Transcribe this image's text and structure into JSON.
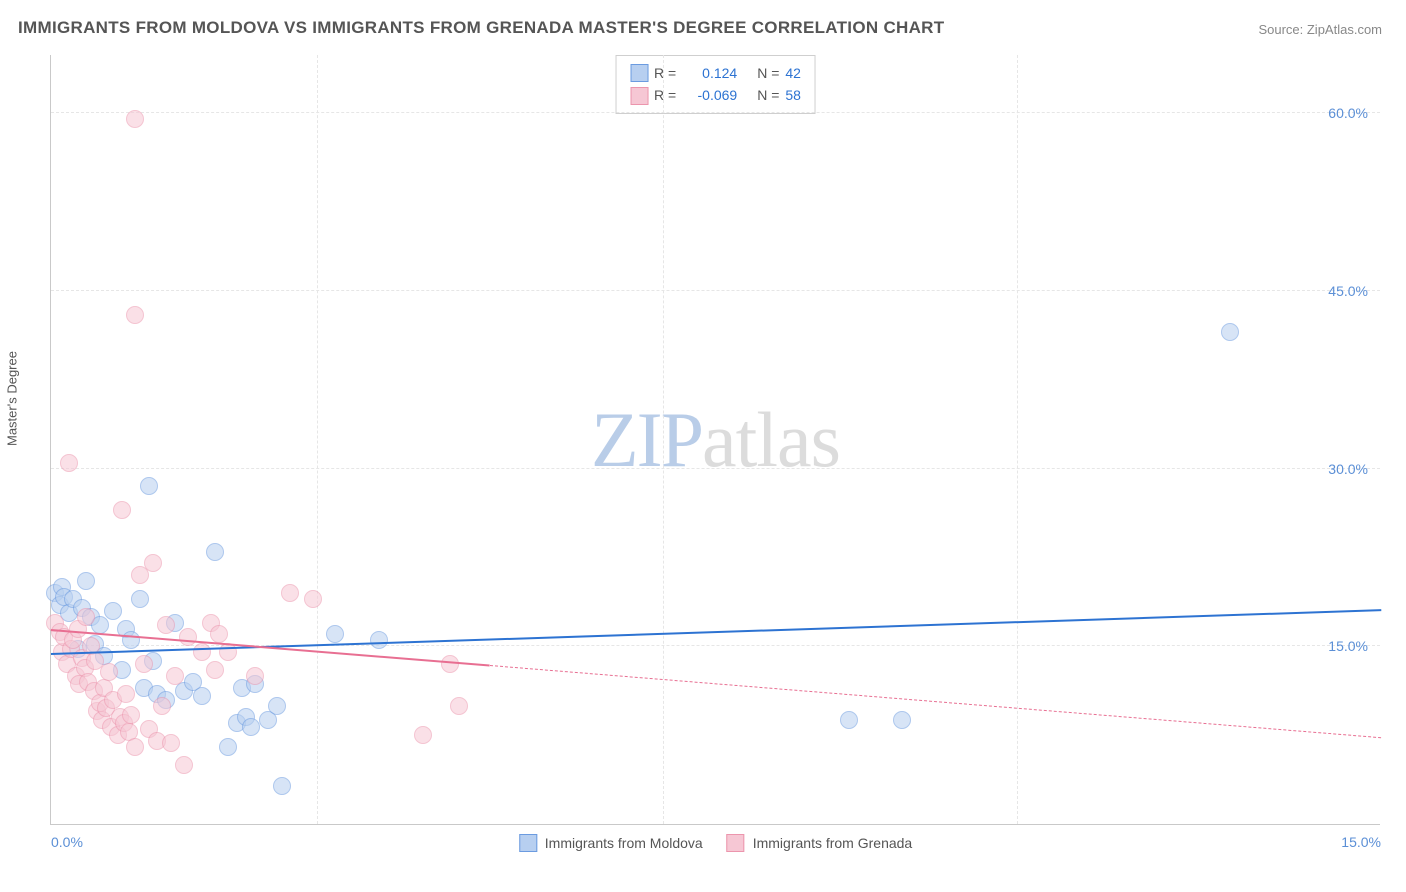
{
  "chart": {
    "type": "scatter",
    "title": "IMMIGRANTS FROM MOLDOVA VS IMMIGRANTS FROM GRENADA MASTER'S DEGREE CORRELATION CHART",
    "source": "Source: ZipAtlas.com",
    "ylabel": "Master's Degree",
    "watermark_zip": "ZIP",
    "watermark_atlas": "atlas",
    "background_color": "#ffffff",
    "grid_color": "#e6e6e6",
    "axis_color": "#c9c9c9",
    "tick_label_color": "#5b8fd6",
    "xlim": [
      0,
      15
    ],
    "ylim": [
      0,
      65
    ],
    "xtick_labels": [
      "0.0%",
      "15.0%"
    ],
    "xtick_positions": [
      0,
      15
    ],
    "ytick_labels": [
      "15.0%",
      "30.0%",
      "45.0%",
      "60.0%"
    ],
    "ytick_positions": [
      15,
      30,
      45,
      60
    ],
    "vgrid_positions": [
      3,
      6.9,
      10.9
    ],
    "point_radius": 9,
    "point_border_width": 1.2,
    "point_opacity": 0.55,
    "series": [
      {
        "name": "Immigrants from Moldova",
        "color_fill": "#b7cff0",
        "color_border": "#6b9be0",
        "legend_R_label": "R =",
        "legend_R_value": "0.124",
        "legend_N_label": "N =",
        "legend_N_value": "42",
        "trend": {
          "y0": 14.3,
          "y1": 18.0,
          "color": "#2d73d2",
          "width": 2.5,
          "solid_extent": 1.0,
          "dash": "none"
        },
        "points": [
          [
            13.3,
            41.5
          ],
          [
            0.05,
            19.5
          ],
          [
            0.1,
            18.5
          ],
          [
            0.12,
            20.0
          ],
          [
            0.15,
            19.2
          ],
          [
            0.2,
            17.8
          ],
          [
            0.25,
            19.0
          ],
          [
            0.3,
            14.8
          ],
          [
            0.35,
            18.2
          ],
          [
            0.4,
            20.5
          ],
          [
            0.45,
            17.5
          ],
          [
            0.5,
            15.2
          ],
          [
            0.55,
            16.8
          ],
          [
            0.6,
            14.2
          ],
          [
            0.7,
            18.0
          ],
          [
            0.8,
            13.0
          ],
          [
            0.85,
            16.5
          ],
          [
            0.9,
            15.5
          ],
          [
            1.0,
            19.0
          ],
          [
            1.05,
            11.5
          ],
          [
            1.1,
            28.5
          ],
          [
            1.15,
            13.8
          ],
          [
            1.2,
            11.0
          ],
          [
            1.3,
            10.5
          ],
          [
            1.4,
            17.0
          ],
          [
            1.5,
            11.2
          ],
          [
            1.6,
            12.0
          ],
          [
            1.7,
            10.8
          ],
          [
            1.85,
            23.0
          ],
          [
            2.0,
            6.5
          ],
          [
            2.1,
            8.5
          ],
          [
            2.15,
            11.5
          ],
          [
            2.2,
            9.0
          ],
          [
            2.25,
            8.2
          ],
          [
            2.3,
            11.8
          ],
          [
            2.45,
            8.8
          ],
          [
            2.55,
            10.0
          ],
          [
            2.6,
            3.2
          ],
          [
            3.2,
            16.0
          ],
          [
            3.7,
            15.5
          ],
          [
            9.0,
            8.8
          ],
          [
            9.6,
            8.8
          ]
        ]
      },
      {
        "name": "Immigrants from Grenada",
        "color_fill": "#f6c7d4",
        "color_border": "#ec95ad",
        "legend_R_label": "R =",
        "legend_R_value": "-0.069",
        "legend_N_label": "N =",
        "legend_N_value": "58",
        "trend": {
          "y0": 16.3,
          "y1": 7.2,
          "color": "#e86f92",
          "width": 2,
          "solid_extent": 0.33,
          "dash": "5,5"
        },
        "points": [
          [
            0.95,
            59.5
          ],
          [
            0.95,
            43.0
          ],
          [
            0.05,
            17.0
          ],
          [
            0.1,
            16.2
          ],
          [
            0.12,
            14.5
          ],
          [
            0.15,
            15.8
          ],
          [
            0.18,
            13.5
          ],
          [
            0.2,
            30.5
          ],
          [
            0.22,
            14.8
          ],
          [
            0.25,
            15.5
          ],
          [
            0.28,
            12.5
          ],
          [
            0.3,
            16.5
          ],
          [
            0.32,
            11.8
          ],
          [
            0.35,
            14.0
          ],
          [
            0.38,
            13.2
          ],
          [
            0.4,
            17.5
          ],
          [
            0.42,
            12.0
          ],
          [
            0.45,
            15.0
          ],
          [
            0.48,
            11.2
          ],
          [
            0.5,
            13.8
          ],
          [
            0.52,
            9.5
          ],
          [
            0.55,
            10.2
          ],
          [
            0.58,
            8.8
          ],
          [
            0.6,
            11.5
          ],
          [
            0.62,
            9.8
          ],
          [
            0.65,
            12.8
          ],
          [
            0.68,
            8.2
          ],
          [
            0.7,
            10.5
          ],
          [
            0.75,
            7.5
          ],
          [
            0.78,
            9.0
          ],
          [
            0.8,
            26.5
          ],
          [
            0.82,
            8.5
          ],
          [
            0.85,
            11.0
          ],
          [
            0.88,
            7.8
          ],
          [
            0.9,
            9.2
          ],
          [
            0.95,
            6.5
          ],
          [
            1.0,
            21.0
          ],
          [
            1.05,
            13.5
          ],
          [
            1.1,
            8.0
          ],
          [
            1.15,
            22.0
          ],
          [
            1.2,
            7.0
          ],
          [
            1.25,
            10.0
          ],
          [
            1.3,
            16.8
          ],
          [
            1.35,
            6.8
          ],
          [
            1.4,
            12.5
          ],
          [
            1.5,
            5.0
          ],
          [
            1.55,
            15.8
          ],
          [
            1.7,
            14.5
          ],
          [
            1.8,
            17.0
          ],
          [
            1.85,
            13.0
          ],
          [
            1.9,
            16.0
          ],
          [
            2.0,
            14.5
          ],
          [
            2.3,
            12.5
          ],
          [
            2.7,
            19.5
          ],
          [
            2.95,
            19.0
          ],
          [
            4.2,
            7.5
          ],
          [
            4.5,
            13.5
          ],
          [
            4.6,
            10.0
          ]
        ]
      }
    ]
  }
}
